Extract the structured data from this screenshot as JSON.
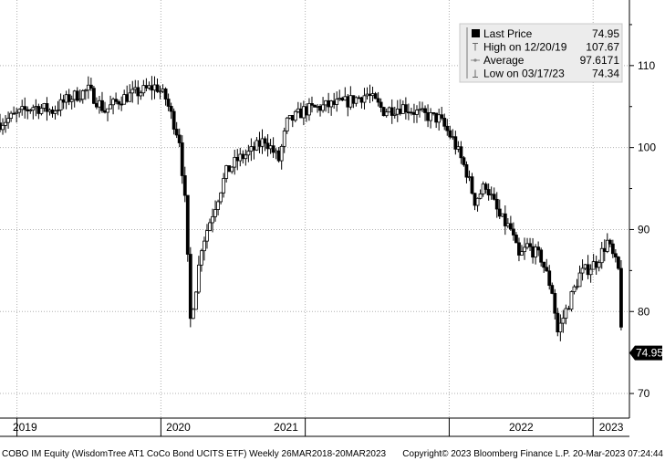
{
  "chart_data": {
    "type": "candlestick",
    "ticker": "COBO IM Equity",
    "name": "WisdomTree AT1 CoCo Bond UCITS ETF",
    "footer": {
      "left": "COBO IM Equity (WisdomTree AT1 CoCo Bond UCITS ETF)  Weekly 26MAR2018-20MAR2023",
      "right": "Copyright© 2023 Bloomberg Finance L.P.   20-Mar-2023 07:24:44"
    },
    "legend": {
      "position": "top-right",
      "entries": [
        {
          "label": "Last Price",
          "value": "74.95",
          "icon": "filled-square-icon"
        },
        {
          "label": "High on 12/20/19",
          "value": "107.67",
          "icon": "high-marker-icon"
        },
        {
          "label": "Average",
          "value": "97.6171",
          "icon": "average-line-icon"
        },
        {
          "label": "Low on 03/17/23",
          "value": "74.34",
          "icon": "low-marker-icon"
        }
      ]
    },
    "last_price_tag": "74.95",
    "y_ticks": [
      70,
      80,
      90,
      100,
      110
    ],
    "y_tick_labels": [
      "70",
      "80",
      "90",
      "100",
      "110"
    ],
    "ylim": [
      67,
      118
    ],
    "x_labels": [
      "2019",
      "2020",
      "2021",
      "2022",
      "2023"
    ],
    "year_boundaries": [
      "2019-01-01",
      "2020-01-01",
      "2021-01-01",
      "2022-01-01",
      "2023-01-01"
    ],
    "x_range": [
      "2018-11-19",
      "2023-04-03"
    ],
    "average": 97.6171,
    "grid": true,
    "colors": {
      "candle": "#000000",
      "grid": "#b0b0b0",
      "legend_bg": "#ececec"
    },
    "series": {
      "period": "weekly",
      "close": [
        {
          "date": "2018-11-19",
          "value": 103.0
        },
        {
          "date": "2018-12-31",
          "value": 104.0
        },
        {
          "date": "2019-02-11",
          "value": 105.0
        },
        {
          "date": "2019-04-01",
          "value": 104.5
        },
        {
          "date": "2019-05-13",
          "value": 106.0
        },
        {
          "date": "2019-07-01",
          "value": 107.0
        },
        {
          "date": "2019-08-12",
          "value": 104.5
        },
        {
          "date": "2019-09-23",
          "value": 106.0
        },
        {
          "date": "2019-12-20",
          "value": 107.5
        },
        {
          "date": "2020-01-13",
          "value": 106.0
        },
        {
          "date": "2020-02-17",
          "value": 101.0
        },
        {
          "date": "2020-03-02",
          "value": 93.5
        },
        {
          "date": "2020-03-16",
          "value": 79.0
        },
        {
          "date": "2020-03-30",
          "value": 83.0
        },
        {
          "date": "2020-04-13",
          "value": 88.0
        },
        {
          "date": "2020-05-18",
          "value": 93.0
        },
        {
          "date": "2020-06-15",
          "value": 97.0
        },
        {
          "date": "2020-07-13",
          "value": 98.5
        },
        {
          "date": "2020-08-17",
          "value": 99.5
        },
        {
          "date": "2020-09-21",
          "value": 101.0
        },
        {
          "date": "2020-10-26",
          "value": 98.5
        },
        {
          "date": "2020-11-16",
          "value": 103.0
        },
        {
          "date": "2020-12-28",
          "value": 104.5
        },
        {
          "date": "2021-02-15",
          "value": 105.0
        },
        {
          "date": "2021-04-12",
          "value": 105.5
        },
        {
          "date": "2021-06-07",
          "value": 106.5
        },
        {
          "date": "2021-07-19",
          "value": 104.5
        },
        {
          "date": "2021-09-06",
          "value": 105.0
        },
        {
          "date": "2021-10-25",
          "value": 104.0
        },
        {
          "date": "2021-12-06",
          "value": 103.5
        },
        {
          "date": "2022-01-10",
          "value": 101.0
        },
        {
          "date": "2022-02-14",
          "value": 97.0
        },
        {
          "date": "2022-03-07",
          "value": 93.5
        },
        {
          "date": "2022-04-04",
          "value": 95.5
        },
        {
          "date": "2022-05-09",
          "value": 91.5
        },
        {
          "date": "2022-06-06",
          "value": 90.0
        },
        {
          "date": "2022-06-27",
          "value": 86.5
        },
        {
          "date": "2022-07-18",
          "value": 88.0
        },
        {
          "date": "2022-08-22",
          "value": 86.5
        },
        {
          "date": "2022-09-19",
          "value": 82.5
        },
        {
          "date": "2022-10-03",
          "value": 77.5
        },
        {
          "date": "2022-10-31",
          "value": 81.0
        },
        {
          "date": "2022-11-28",
          "value": 84.5
        },
        {
          "date": "2023-01-09",
          "value": 86.0
        },
        {
          "date": "2023-02-06",
          "value": 88.5
        },
        {
          "date": "2023-03-06",
          "value": 85.0
        },
        {
          "date": "2023-03-17",
          "value": 74.95
        }
      ]
    }
  }
}
